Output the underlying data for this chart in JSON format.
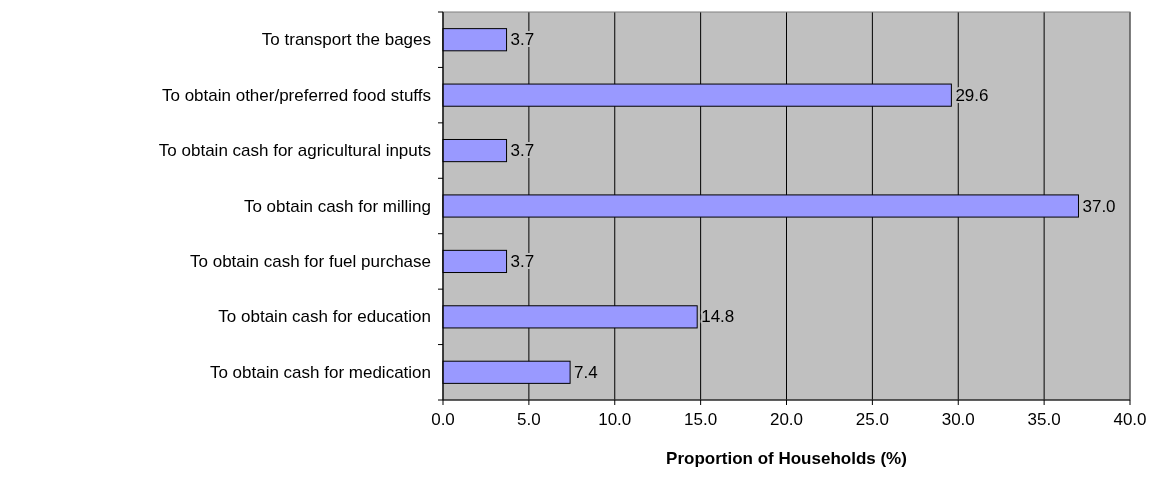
{
  "chart_data": {
    "type": "bar",
    "orientation": "horizontal",
    "xlabel": "Proportion of Households (%)",
    "categories": [
      "To transport the bages",
      "To obtain other/preferred food stuffs",
      "To obtain cash for agricultural inputs",
      "To obtain cash for milling",
      "To obtain cash for fuel purchase",
      "To obtain cash for education",
      "To obtain cash for medication"
    ],
    "values": [
      3.7,
      29.6,
      3.7,
      37.0,
      3.7,
      14.8,
      7.4
    ],
    "value_labels": [
      "3.7",
      "29.6",
      "3.7",
      "37.0",
      "3.7",
      "14.8",
      "7.4"
    ],
    "color": "#9999ff",
    "xlim": [
      0,
      40
    ],
    "xticks": [
      {
        "value": 0,
        "label": "0.0"
      },
      {
        "value": 5,
        "label": "5.0"
      },
      {
        "value": 10,
        "label": "10.0"
      },
      {
        "value": 15,
        "label": "15.0"
      },
      {
        "value": 20,
        "label": "20.0"
      },
      {
        "value": 25,
        "label": "25.0"
      },
      {
        "value": 30,
        "label": "30.0"
      },
      {
        "value": 35,
        "label": "35.0"
      },
      {
        "value": 40,
        "label": "40.0"
      }
    ],
    "grid": "x"
  }
}
